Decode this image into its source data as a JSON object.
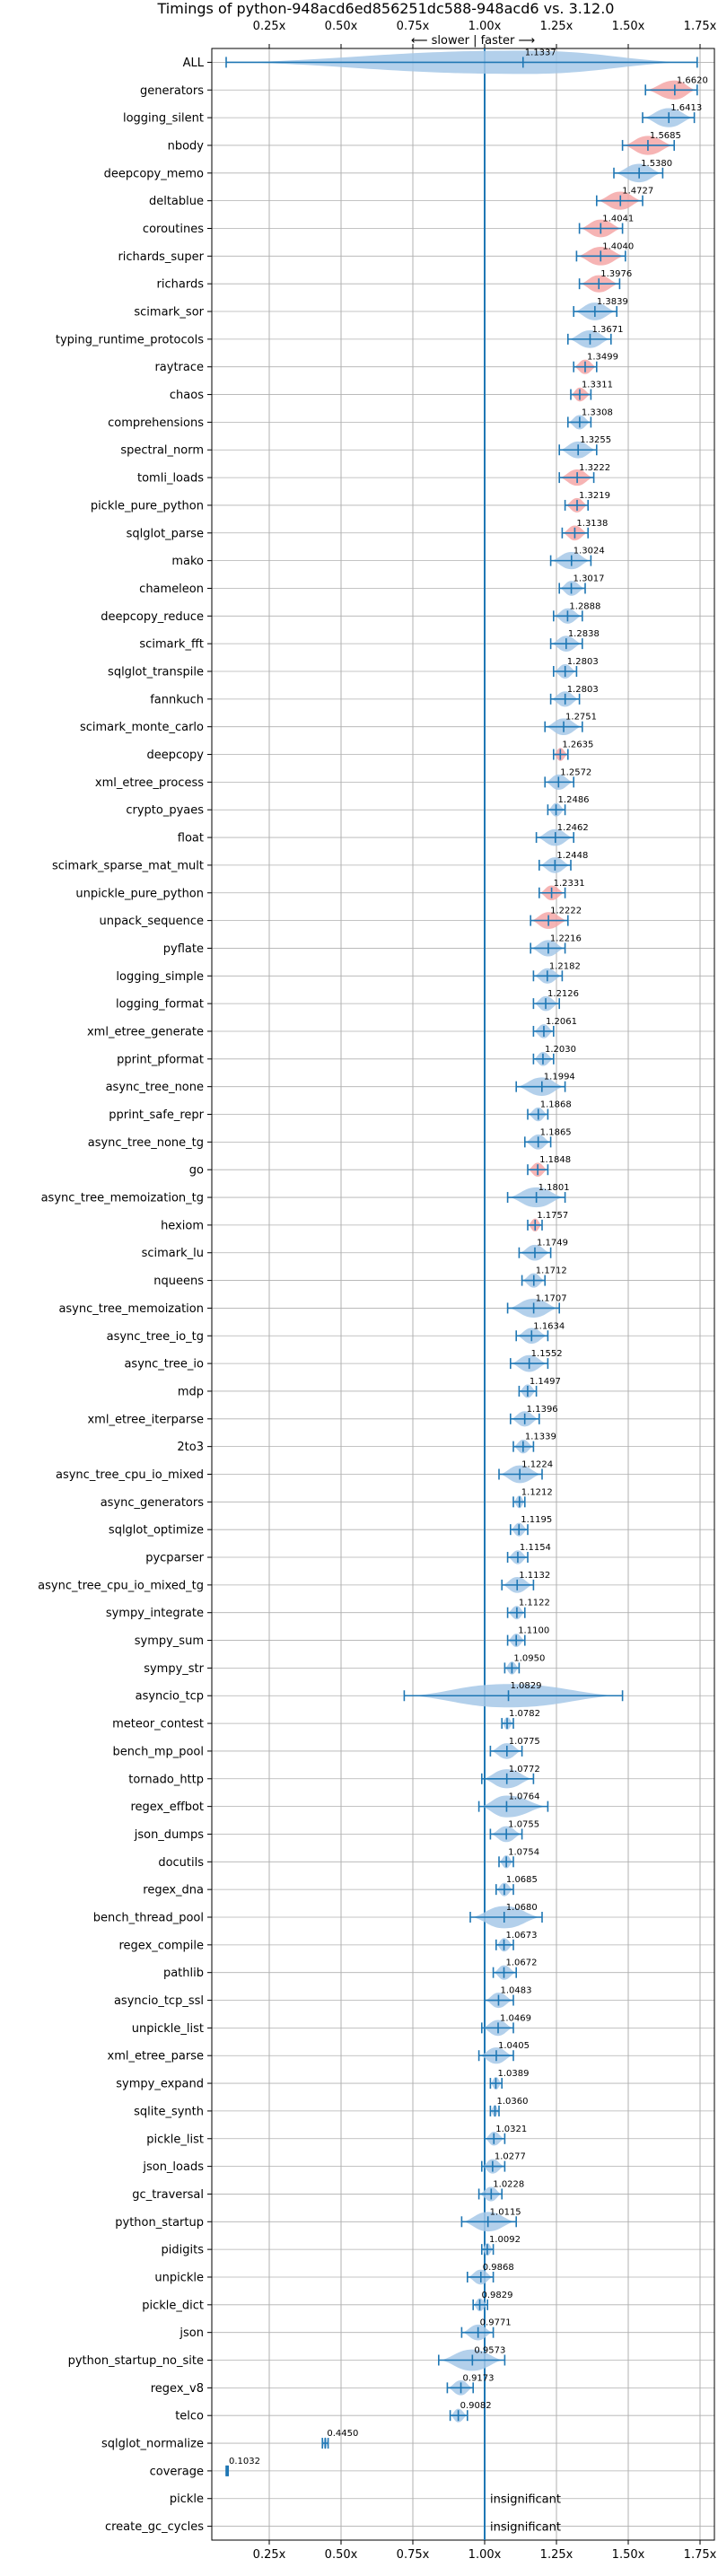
{
  "chart_data": {
    "type": "violin",
    "title": "Timings of python-948acd6ed856251dc588-948acd6 vs. 3.12.0",
    "axis_note": "⟵ slower | faster ⟶",
    "xlim": [
      0.05,
      1.8
    ],
    "xticks": [
      0.25,
      0.5,
      0.75,
      1.0,
      1.25,
      1.5,
      1.75
    ],
    "xtick_labels": [
      "0.25x",
      "0.50x",
      "0.75x",
      "1.00x",
      "1.25x",
      "1.50x",
      "1.75x"
    ],
    "reference_line": 1.0,
    "grid": true,
    "colors": {
      "normal": "#a6c8e8",
      "regression": "#f4a7a7",
      "line": "#1f77b4",
      "grid": "#b0b0b0"
    },
    "benchmarks": [
      {
        "name": "ALL",
        "value": 1.1337,
        "label": "1.1337",
        "low": 0.1,
        "high": 1.74,
        "color": "normal"
      },
      {
        "name": "generators",
        "value": 1.662,
        "label": "1.6620",
        "low": 1.56,
        "high": 1.74,
        "color": "regression"
      },
      {
        "name": "logging_silent",
        "value": 1.6413,
        "label": "1.6413",
        "low": 1.55,
        "high": 1.73,
        "color": "normal"
      },
      {
        "name": "nbody",
        "value": 1.5685,
        "label": "1.5685",
        "low": 1.48,
        "high": 1.66,
        "color": "regression"
      },
      {
        "name": "deepcopy_memo",
        "value": 1.538,
        "label": "1.5380",
        "low": 1.45,
        "high": 1.62,
        "color": "normal"
      },
      {
        "name": "deltablue",
        "value": 1.4727,
        "label": "1.4727",
        "low": 1.39,
        "high": 1.55,
        "color": "regression"
      },
      {
        "name": "coroutines",
        "value": 1.4041,
        "label": "1.4041",
        "low": 1.33,
        "high": 1.48,
        "color": "regression"
      },
      {
        "name": "richards_super",
        "value": 1.404,
        "label": "1.4040",
        "low": 1.32,
        "high": 1.49,
        "color": "regression"
      },
      {
        "name": "richards",
        "value": 1.3976,
        "label": "1.3976",
        "low": 1.33,
        "high": 1.47,
        "color": "regression"
      },
      {
        "name": "scimark_sor",
        "value": 1.3839,
        "label": "1.3839",
        "low": 1.31,
        "high": 1.46,
        "color": "normal"
      },
      {
        "name": "typing_runtime_protocols",
        "value": 1.3671,
        "label": "1.3671",
        "low": 1.29,
        "high": 1.44,
        "color": "normal"
      },
      {
        "name": "raytrace",
        "value": 1.3499,
        "label": "1.3499",
        "low": 1.31,
        "high": 1.39,
        "color": "regression"
      },
      {
        "name": "chaos",
        "value": 1.3311,
        "label": "1.3311",
        "low": 1.3,
        "high": 1.37,
        "color": "regression"
      },
      {
        "name": "comprehensions",
        "value": 1.3308,
        "label": "1.3308",
        "low": 1.29,
        "high": 1.37,
        "color": "normal"
      },
      {
        "name": "spectral_norm",
        "value": 1.3255,
        "label": "1.3255",
        "low": 1.26,
        "high": 1.39,
        "color": "normal"
      },
      {
        "name": "tomli_loads",
        "value": 1.3222,
        "label": "1.3222",
        "low": 1.26,
        "high": 1.38,
        "color": "regression"
      },
      {
        "name": "pickle_pure_python",
        "value": 1.3219,
        "label": "1.3219",
        "low": 1.28,
        "high": 1.36,
        "color": "regression"
      },
      {
        "name": "sqlglot_parse",
        "value": 1.3138,
        "label": "1.3138",
        "low": 1.27,
        "high": 1.36,
        "color": "regression"
      },
      {
        "name": "mako",
        "value": 1.3024,
        "label": "1.3024",
        "low": 1.23,
        "high": 1.37,
        "color": "normal"
      },
      {
        "name": "chameleon",
        "value": 1.3017,
        "label": "1.3017",
        "low": 1.26,
        "high": 1.35,
        "color": "normal"
      },
      {
        "name": "deepcopy_reduce",
        "value": 1.2888,
        "label": "1.2888",
        "low": 1.24,
        "high": 1.34,
        "color": "normal"
      },
      {
        "name": "scimark_fft",
        "value": 1.2838,
        "label": "1.2838",
        "low": 1.23,
        "high": 1.34,
        "color": "normal"
      },
      {
        "name": "sqlglot_transpile",
        "value": 1.2803,
        "label": "1.2803",
        "low": 1.24,
        "high": 1.32,
        "color": "normal"
      },
      {
        "name": "fannkuch",
        "value": 1.2803,
        "label": "1.2803",
        "low": 1.23,
        "high": 1.33,
        "color": "normal"
      },
      {
        "name": "scimark_monte_carlo",
        "value": 1.2751,
        "label": "1.2751",
        "low": 1.21,
        "high": 1.34,
        "color": "normal"
      },
      {
        "name": "deepcopy",
        "value": 1.2635,
        "label": "1.2635",
        "low": 1.24,
        "high": 1.29,
        "color": "regression"
      },
      {
        "name": "xml_etree_process",
        "value": 1.2572,
        "label": "1.2572",
        "low": 1.21,
        "high": 1.31,
        "color": "normal"
      },
      {
        "name": "crypto_pyaes",
        "value": 1.2486,
        "label": "1.2486",
        "low": 1.22,
        "high": 1.28,
        "color": "normal"
      },
      {
        "name": "float",
        "value": 1.2462,
        "label": "1.2462",
        "low": 1.18,
        "high": 1.31,
        "color": "normal"
      },
      {
        "name": "scimark_sparse_mat_mult",
        "value": 1.2448,
        "label": "1.2448",
        "low": 1.19,
        "high": 1.3,
        "color": "normal"
      },
      {
        "name": "unpickle_pure_python",
        "value": 1.2331,
        "label": "1.2331",
        "low": 1.19,
        "high": 1.28,
        "color": "regression"
      },
      {
        "name": "unpack_sequence",
        "value": 1.2222,
        "label": "1.2222",
        "low": 1.16,
        "high": 1.29,
        "color": "regression"
      },
      {
        "name": "pyflate",
        "value": 1.2216,
        "label": "1.2216",
        "low": 1.16,
        "high": 1.28,
        "color": "normal"
      },
      {
        "name": "logging_simple",
        "value": 1.2182,
        "label": "1.2182",
        "low": 1.17,
        "high": 1.27,
        "color": "normal"
      },
      {
        "name": "logging_format",
        "value": 1.2126,
        "label": "1.2126",
        "low": 1.17,
        "high": 1.26,
        "color": "normal"
      },
      {
        "name": "xml_etree_generate",
        "value": 1.2061,
        "label": "1.2061",
        "low": 1.17,
        "high": 1.24,
        "color": "normal"
      },
      {
        "name": "pprint_pformat",
        "value": 1.203,
        "label": "1.2030",
        "low": 1.17,
        "high": 1.24,
        "color": "normal"
      },
      {
        "name": "async_tree_none",
        "value": 1.1994,
        "label": "1.1994",
        "low": 1.11,
        "high": 1.28,
        "color": "normal"
      },
      {
        "name": "pprint_safe_repr",
        "value": 1.1868,
        "label": "1.1868",
        "low": 1.15,
        "high": 1.22,
        "color": "normal"
      },
      {
        "name": "async_tree_none_tg",
        "value": 1.1865,
        "label": "1.1865",
        "low": 1.14,
        "high": 1.23,
        "color": "normal"
      },
      {
        "name": "go",
        "value": 1.1848,
        "label": "1.1848",
        "low": 1.15,
        "high": 1.22,
        "color": "regression"
      },
      {
        "name": "async_tree_memoization_tg",
        "value": 1.1801,
        "label": "1.1801",
        "low": 1.08,
        "high": 1.28,
        "color": "normal"
      },
      {
        "name": "hexiom",
        "value": 1.1757,
        "label": "1.1757",
        "low": 1.15,
        "high": 1.2,
        "color": "regression"
      },
      {
        "name": "scimark_lu",
        "value": 1.1749,
        "label": "1.1749",
        "low": 1.12,
        "high": 1.23,
        "color": "normal"
      },
      {
        "name": "nqueens",
        "value": 1.1712,
        "label": "1.1712",
        "low": 1.13,
        "high": 1.21,
        "color": "normal"
      },
      {
        "name": "async_tree_memoization",
        "value": 1.1707,
        "label": "1.1707",
        "low": 1.08,
        "high": 1.26,
        "color": "normal"
      },
      {
        "name": "async_tree_io_tg",
        "value": 1.1634,
        "label": "1.1634",
        "low": 1.11,
        "high": 1.22,
        "color": "normal"
      },
      {
        "name": "async_tree_io",
        "value": 1.1552,
        "label": "1.1552",
        "low": 1.09,
        "high": 1.22,
        "color": "normal"
      },
      {
        "name": "mdp",
        "value": 1.1497,
        "label": "1.1497",
        "low": 1.12,
        "high": 1.18,
        "color": "normal"
      },
      {
        "name": "xml_etree_iterparse",
        "value": 1.1396,
        "label": "1.1396",
        "low": 1.09,
        "high": 1.19,
        "color": "normal"
      },
      {
        "name": "2to3",
        "value": 1.1339,
        "label": "1.1339",
        "low": 1.1,
        "high": 1.17,
        "color": "normal"
      },
      {
        "name": "async_tree_cpu_io_mixed",
        "value": 1.1224,
        "label": "1.1224",
        "low": 1.05,
        "high": 1.2,
        "color": "normal"
      },
      {
        "name": "async_generators",
        "value": 1.1212,
        "label": "1.1212",
        "low": 1.1,
        "high": 1.14,
        "color": "normal"
      },
      {
        "name": "sqlglot_optimize",
        "value": 1.1195,
        "label": "1.1195",
        "low": 1.09,
        "high": 1.15,
        "color": "normal"
      },
      {
        "name": "pycparser",
        "value": 1.1154,
        "label": "1.1154",
        "low": 1.08,
        "high": 1.15,
        "color": "normal"
      },
      {
        "name": "async_tree_cpu_io_mixed_tg",
        "value": 1.1132,
        "label": "1.1132",
        "low": 1.06,
        "high": 1.17,
        "color": "normal"
      },
      {
        "name": "sympy_integrate",
        "value": 1.1122,
        "label": "1.1122",
        "low": 1.08,
        "high": 1.14,
        "color": "normal"
      },
      {
        "name": "sympy_sum",
        "value": 1.11,
        "label": "1.1100",
        "low": 1.08,
        "high": 1.14,
        "color": "normal"
      },
      {
        "name": "sympy_str",
        "value": 1.095,
        "label": "1.0950",
        "low": 1.07,
        "high": 1.12,
        "color": "normal"
      },
      {
        "name": "asyncio_tcp",
        "value": 1.0829,
        "label": "1.0829",
        "low": 0.72,
        "high": 1.48,
        "color": "normal"
      },
      {
        "name": "meteor_contest",
        "value": 1.0782,
        "label": "1.0782",
        "low": 1.06,
        "high": 1.1,
        "color": "normal"
      },
      {
        "name": "bench_mp_pool",
        "value": 1.0775,
        "label": "1.0775",
        "low": 1.02,
        "high": 1.13,
        "color": "normal"
      },
      {
        "name": "tornado_http",
        "value": 1.0772,
        "label": "1.0772",
        "low": 0.99,
        "high": 1.17,
        "color": "normal"
      },
      {
        "name": "regex_effbot",
        "value": 1.0764,
        "label": "1.0764",
        "low": 0.98,
        "high": 1.22,
        "color": "normal"
      },
      {
        "name": "json_dumps",
        "value": 1.0755,
        "label": "1.0755",
        "low": 1.02,
        "high": 1.13,
        "color": "normal"
      },
      {
        "name": "docutils",
        "value": 1.0754,
        "label": "1.0754",
        "low": 1.05,
        "high": 1.1,
        "color": "normal"
      },
      {
        "name": "regex_dna",
        "value": 1.0685,
        "label": "1.0685",
        "low": 1.04,
        "high": 1.1,
        "color": "normal"
      },
      {
        "name": "bench_thread_pool",
        "value": 1.068,
        "label": "1.0680",
        "low": 0.95,
        "high": 1.2,
        "color": "normal"
      },
      {
        "name": "regex_compile",
        "value": 1.0673,
        "label": "1.0673",
        "low": 1.04,
        "high": 1.1,
        "color": "normal"
      },
      {
        "name": "pathlib",
        "value": 1.0672,
        "label": "1.0672",
        "low": 1.03,
        "high": 1.11,
        "color": "normal"
      },
      {
        "name": "asyncio_tcp_ssl",
        "value": 1.0483,
        "label": "1.0483",
        "low": 1.0,
        "high": 1.1,
        "color": "normal"
      },
      {
        "name": "unpickle_list",
        "value": 1.0469,
        "label": "1.0469",
        "low": 0.99,
        "high": 1.1,
        "color": "normal"
      },
      {
        "name": "xml_etree_parse",
        "value": 1.0405,
        "label": "1.0405",
        "low": 0.98,
        "high": 1.1,
        "color": "normal"
      },
      {
        "name": "sympy_expand",
        "value": 1.0389,
        "label": "1.0389",
        "low": 1.02,
        "high": 1.06,
        "color": "normal"
      },
      {
        "name": "sqlite_synth",
        "value": 1.036,
        "label": "1.0360",
        "low": 1.02,
        "high": 1.05,
        "color": "normal"
      },
      {
        "name": "pickle_list",
        "value": 1.0321,
        "label": "1.0321",
        "low": 1.0,
        "high": 1.07,
        "color": "normal"
      },
      {
        "name": "json_loads",
        "value": 1.0277,
        "label": "1.0277",
        "low": 0.99,
        "high": 1.07,
        "color": "normal"
      },
      {
        "name": "gc_traversal",
        "value": 1.0228,
        "label": "1.0228",
        "low": 0.98,
        "high": 1.06,
        "color": "normal"
      },
      {
        "name": "python_startup",
        "value": 1.0115,
        "label": "1.0115",
        "low": 0.92,
        "high": 1.11,
        "color": "normal"
      },
      {
        "name": "pidigits",
        "value": 1.0092,
        "label": "1.0092",
        "low": 0.99,
        "high": 1.03,
        "color": "normal"
      },
      {
        "name": "unpickle",
        "value": 0.9868,
        "label": "0.9868",
        "low": 0.94,
        "high": 1.03,
        "color": "normal"
      },
      {
        "name": "pickle_dict",
        "value": 0.9829,
        "label": "0.9829",
        "low": 0.96,
        "high": 1.01,
        "color": "normal"
      },
      {
        "name": "json",
        "value": 0.9771,
        "label": "0.9771",
        "low": 0.92,
        "high": 1.03,
        "color": "normal"
      },
      {
        "name": "python_startup_no_site",
        "value": 0.9573,
        "label": "0.9573",
        "low": 0.84,
        "high": 1.07,
        "color": "normal"
      },
      {
        "name": "regex_v8",
        "value": 0.9173,
        "label": "0.9173",
        "low": 0.87,
        "high": 0.96,
        "color": "normal"
      },
      {
        "name": "telco",
        "value": 0.9082,
        "label": "0.9082",
        "low": 0.88,
        "high": 0.94,
        "color": "normal"
      },
      {
        "name": "sqlglot_normalize",
        "value": 0.445,
        "label": "0.4450",
        "low": 0.435,
        "high": 0.455,
        "color": "normal"
      },
      {
        "name": "coverage",
        "value": 0.1032,
        "label": "0.1032",
        "low": 0.1,
        "high": 0.107,
        "color": "normal"
      },
      {
        "name": "pickle",
        "value": null,
        "label": "insignificant",
        "low": null,
        "high": null,
        "color": "normal"
      },
      {
        "name": "create_gc_cycles",
        "value": null,
        "label": "insignificant",
        "low": null,
        "high": null,
        "color": "normal"
      }
    ]
  }
}
